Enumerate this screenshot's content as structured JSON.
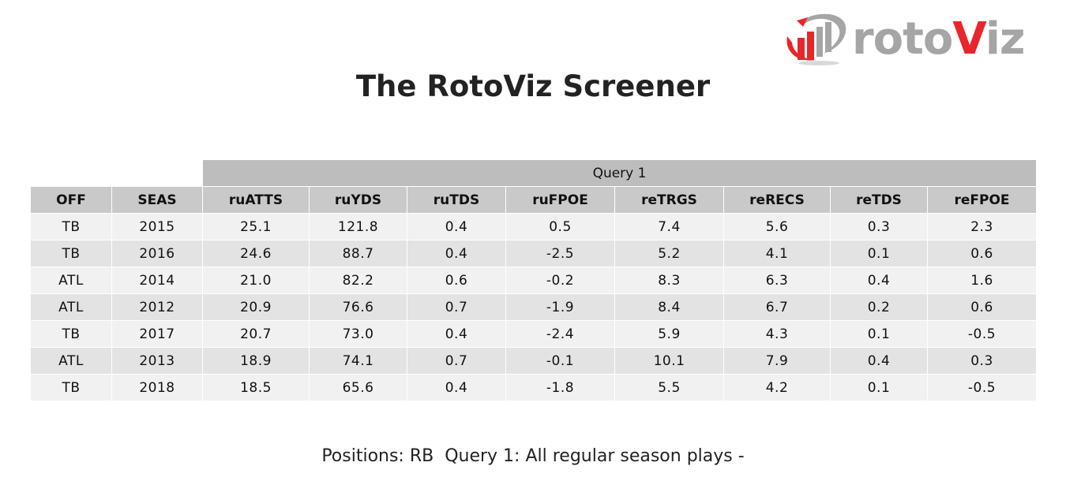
{
  "logo": {
    "text_prefix": "roto",
    "text_highlight": "V",
    "text_suffix": "iz",
    "colors": {
      "red": "#e8262a",
      "grey": "#a5a5a5"
    }
  },
  "title": "The RotoViz Screener",
  "table": {
    "group_label": "Query 1",
    "columns": [
      "OFF",
      "SEAS",
      "ruATTS",
      "ruYDS",
      "ruTDS",
      "ruFPOE",
      "reTRGS",
      "reRECS",
      "reTDS",
      "reFPOE"
    ],
    "rows": [
      [
        "TB",
        "2015",
        "25.1",
        "121.8",
        "0.4",
        "0.5",
        "7.4",
        "5.6",
        "0.3",
        "2.3"
      ],
      [
        "TB",
        "2016",
        "24.6",
        "88.7",
        "0.4",
        "-2.5",
        "5.2",
        "4.1",
        "0.1",
        "0.6"
      ],
      [
        "ATL",
        "2014",
        "21.0",
        "82.2",
        "0.6",
        "-0.2",
        "8.3",
        "6.3",
        "0.4",
        "1.6"
      ],
      [
        "ATL",
        "2012",
        "20.9",
        "76.6",
        "0.7",
        "-1.9",
        "8.4",
        "6.7",
        "0.2",
        "0.6"
      ],
      [
        "TB",
        "2017",
        "20.7",
        "73.0",
        "0.4",
        "-2.4",
        "5.9",
        "4.3",
        "0.1",
        "-0.5"
      ],
      [
        "ATL",
        "2013",
        "18.9",
        "74.1",
        "0.7",
        "-0.1",
        "10.1",
        "7.9",
        "0.4",
        "0.3"
      ],
      [
        "TB",
        "2018",
        "18.5",
        "65.6",
        "0.4",
        "-1.8",
        "5.5",
        "4.2",
        "0.1",
        "-0.5"
      ]
    ],
    "colors": {
      "group_header": "#bdbdbd",
      "column_header": "#c9c9c9",
      "row_light": "#f1f1f1",
      "row_dark": "#e3e3e3"
    }
  },
  "chart_data": {
    "type": "table",
    "title": "The RotoViz Screener",
    "group_header": "Query 1",
    "columns": [
      "OFF",
      "SEAS",
      "ruATTS",
      "ruYDS",
      "ruTDS",
      "ruFPOE",
      "reTRGS",
      "reRECS",
      "reTDS",
      "reFPOE"
    ],
    "rows": [
      [
        "TB",
        2015,
        25.1,
        121.8,
        0.4,
        0.5,
        7.4,
        5.6,
        0.3,
        2.3
      ],
      [
        "TB",
        2016,
        24.6,
        88.7,
        0.4,
        -2.5,
        5.2,
        4.1,
        0.1,
        0.6
      ],
      [
        "ATL",
        2014,
        21.0,
        82.2,
        0.6,
        -0.2,
        8.3,
        6.3,
        0.4,
        1.6
      ],
      [
        "ATL",
        2012,
        20.9,
        76.6,
        0.7,
        -1.9,
        8.4,
        6.7,
        0.2,
        0.6
      ],
      [
        "TB",
        2017,
        20.7,
        73.0,
        0.4,
        -2.4,
        5.9,
        4.3,
        0.1,
        -0.5
      ],
      [
        "ATL",
        2013,
        18.9,
        74.1,
        0.7,
        -0.1,
        10.1,
        7.9,
        0.4,
        0.3
      ],
      [
        "TB",
        2018,
        18.5,
        65.6,
        0.4,
        -1.8,
        5.5,
        4.2,
        0.1,
        -0.5
      ]
    ]
  },
  "footer": "Positions: RB  Query 1: All regular season plays -"
}
